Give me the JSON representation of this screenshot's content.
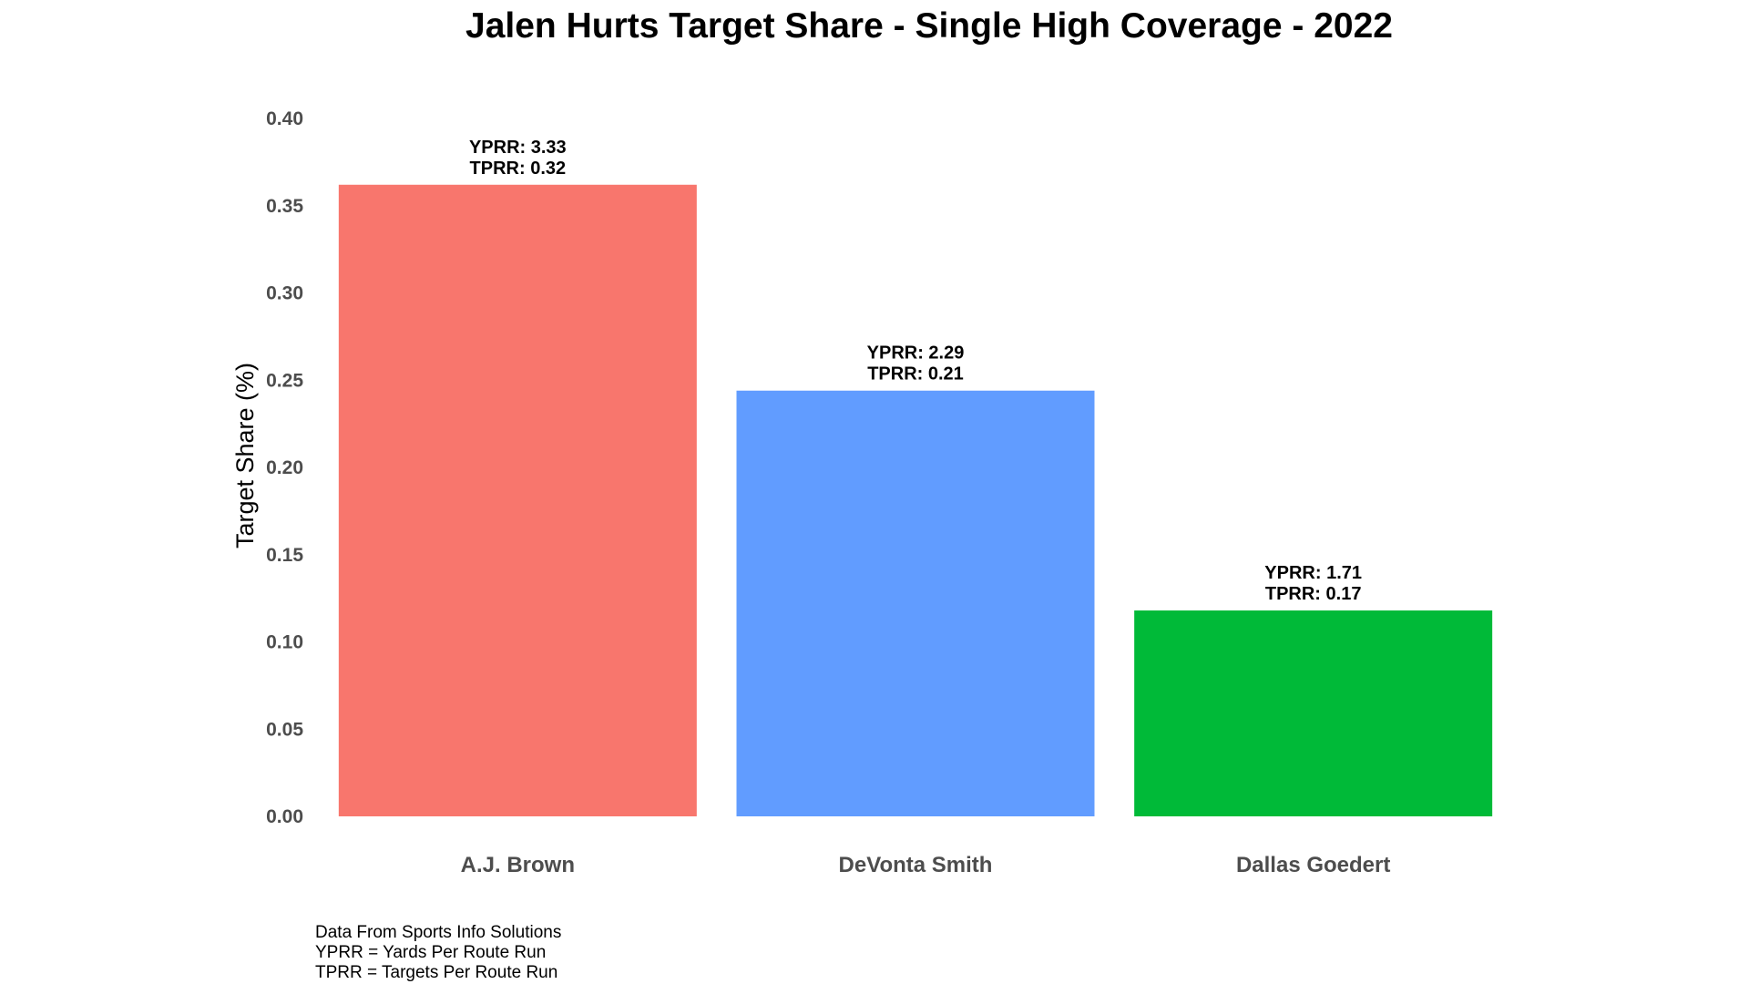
{
  "chart_data": {
    "type": "bar",
    "title": "Jalen Hurts Target Share - Single High Coverage - 2022",
    "xlabel": "",
    "ylabel": "Target Share (%)",
    "ylim": [
      0,
      0.4
    ],
    "y_ticks": [
      "0.00",
      "0.05",
      "0.10",
      "0.15",
      "0.20",
      "0.25",
      "0.30",
      "0.35",
      "0.40"
    ],
    "grid": false,
    "legend": "none",
    "categories": [
      "A.J. Brown",
      "DeVonta Smith",
      "Dallas Goedert"
    ],
    "values": [
      0.362,
      0.244,
      0.118
    ],
    "colors": [
      "#F8766D",
      "#619CFF",
      "#00BA38"
    ],
    "annotations": [
      [
        "YPRR: 3.33",
        "TPRR: 0.32"
      ],
      [
        "YPRR: 2.29",
        "TPRR: 0.21"
      ],
      [
        "YPRR: 1.71",
        "TPRR: 0.17"
      ]
    ],
    "caption": [
      "Data From Sports Info Solutions",
      "YPRR = Yards Per Route Run",
      "TPRR = Targets Per Route Run"
    ]
  }
}
